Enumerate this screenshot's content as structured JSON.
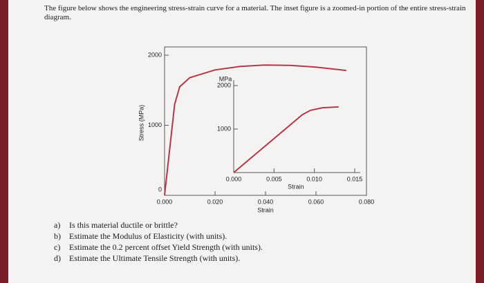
{
  "intro": "The figure below shows the engineering stress-strain curve for a material. The inset figure is a zoomed-in portion of the entire stress-strain diagram.",
  "figure": {
    "y_label": "Stress (MPa)",
    "color": "#b3364a",
    "main": {
      "xlim": [
        0,
        0.08
      ],
      "ylim": [
        0,
        2000
      ],
      "xticks": [
        {
          "value": 0,
          "label": "0.000"
        },
        {
          "value": 0.02,
          "label": "0.020"
        },
        {
          "value": 0.04,
          "label": "0.040"
        },
        {
          "value": 0.06,
          "label": "0.060"
        },
        {
          "value": 0.08,
          "label": "0.080"
        }
      ],
      "yticks": [
        0,
        1000,
        2000
      ],
      "x_label": "Strain",
      "curve": {
        "x": [
          0,
          0.004,
          0.006,
          0.01,
          0.02,
          0.03,
          0.04,
          0.05,
          0.06,
          0.07,
          0.072
        ],
        "y": [
          0,
          1300,
          1550,
          1680,
          1790,
          1840,
          1860,
          1855,
          1830,
          1790,
          1780
        ]
      }
    },
    "inset": {
      "xlim": [
        0,
        0.015
      ],
      "ylim": [
        0,
        2000
      ],
      "xticks": [
        {
          "value": 0,
          "label": "0.000"
        },
        {
          "value": 0.005,
          "label": "0.005"
        },
        {
          "value": 0.01,
          "label": "0.010"
        },
        {
          "value": 0.015,
          "label": "0.015"
        }
      ],
      "yticks": [
        1000,
        2000
      ],
      "y_unit": "MPa",
      "x_label": "Strain",
      "curve": {
        "x": [
          0,
          0.0085,
          0.0095,
          0.011,
          0.013
        ],
        "y": [
          0,
          1330,
          1430,
          1490,
          1510
        ]
      }
    }
  },
  "questions": [
    {
      "label": "a)",
      "text": "Is this material ductile or brittle?"
    },
    {
      "label": "b)",
      "text": "Estimate the Modulus of Elasticity (with units)."
    },
    {
      "label": "c)",
      "text": "Estimate the 0.2 percent offset Yield Strength (with units)."
    },
    {
      "label": "d)",
      "text": "Estimate the Ultimate Tensile Strength (with units)."
    }
  ]
}
